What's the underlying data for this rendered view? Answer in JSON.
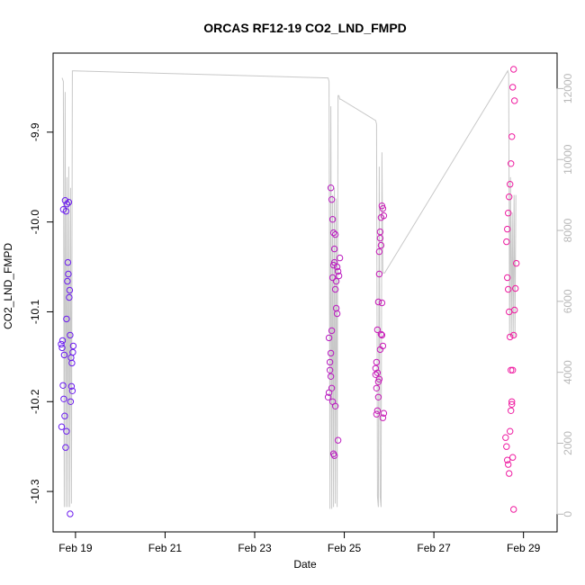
{
  "chart_data": {
    "type": "scatter",
    "title": "ORCAS RF12-19 CO2_LND_FMPD",
    "xlabel": "Date",
    "ylabel": "CO2_LND_FMPD",
    "y2label": "",
    "xlim": [
      0.5,
      11.75
    ],
    "ylim": [
      -10.345,
      -9.812
    ],
    "y2lim": [
      -500,
      13000
    ],
    "x_ticks": [
      {
        "value": 1,
        "label": "Feb 19"
      },
      {
        "value": 3,
        "label": "Feb 21"
      },
      {
        "value": 5,
        "label": "Feb 23"
      },
      {
        "value": 7,
        "label": "Feb 25"
      },
      {
        "value": 9,
        "label": "Feb 27"
      },
      {
        "value": 11,
        "label": "Feb 29"
      }
    ],
    "y_ticks": [
      {
        "value": -9.9,
        "label": "-9.9"
      },
      {
        "value": -10.0,
        "label": "-10.0"
      },
      {
        "value": -10.1,
        "label": "-10.1"
      },
      {
        "value": -10.2,
        "label": "-10.2"
      },
      {
        "value": -10.3,
        "label": "-10.3"
      }
    ],
    "y2_ticks": [
      {
        "value": 0,
        "label": "0"
      },
      {
        "value": 2000,
        "label": "2000"
      },
      {
        "value": 4000,
        "label": "4000"
      },
      {
        "value": 6000,
        "label": "6000"
      },
      {
        "value": 8000,
        "label": "8000"
      },
      {
        "value": 10000,
        "label": "10000"
      },
      {
        "value": 12000,
        "label": "12000"
      }
    ],
    "grid": false,
    "legend": "none",
    "colors": {
      "point_start": "#6a1cf0",
      "point_end": "#f01ca0",
      "altitude_line": "#c8c8c8",
      "axis": "#000000"
    },
    "altitude_series": {
      "name": "",
      "axis": "right",
      "x": [
        0.7,
        0.73,
        0.75,
        0.77,
        0.79,
        0.81,
        0.83,
        0.85,
        0.87,
        0.89,
        0.91,
        0.93,
        0.95,
        0.97,
        6.64,
        6.66,
        6.68,
        6.7,
        6.72,
        6.74,
        6.76,
        6.78,
        6.8,
        6.82,
        6.84,
        6.86,
        6.88,
        6.9,
        6.92,
        7.7,
        7.72,
        7.74,
        7.76,
        7.78,
        7.8,
        7.82,
        7.84,
        7.86,
        7.88,
        7.9,
        10.65,
        10.67,
        10.69,
        10.71,
        10.73,
        10.75,
        10.77,
        10.79,
        10.81,
        10.83
      ],
      "values": [
        12300,
        12200,
        200,
        11900,
        200,
        9500,
        200,
        9800,
        200,
        9200,
        300,
        12500,
        12500,
        12500,
        12300,
        12200,
        150,
        11500,
        150,
        9000,
        200,
        9200,
        300,
        8900,
        200,
        11800,
        11800,
        11700,
        11700,
        11100,
        11000,
        500,
        200,
        9800,
        500,
        200,
        10200,
        6800,
        6800,
        6800,
        12500,
        12400,
        5000,
        9500,
        5000,
        8500,
        5000,
        9000,
        5000,
        9000
      ]
    },
    "series": [
      {
        "name": "",
        "x": [
          0.68,
          0.7,
          0.72,
          0.74,
          0.76,
          0.78,
          0.8,
          0.82,
          0.84,
          0.86,
          0.88,
          0.9,
          0.92,
          0.94,
          0.95,
          0.85,
          0.81,
          0.77,
          0.73,
          0.79,
          0.83,
          0.87,
          0.91,
          0.93,
          0.75,
          0.71,
          0.69,
          0.89,
          0.8,
          0.88
        ],
        "values": [
          -10.136,
          -10.14,
          -10.182,
          -10.197,
          -10.216,
          -10.251,
          -10.108,
          -10.066,
          -10.058,
          -10.084,
          -10.126,
          -10.151,
          -10.157,
          -10.145,
          -10.138,
          -9.978,
          -9.98,
          -9.976,
          -9.986,
          -9.988,
          -10.045,
          -10.076,
          -10.183,
          -10.188,
          -10.148,
          -10.132,
          -10.228,
          -10.2,
          -10.233,
          -10.325
        ]
      },
      {
        "name": "",
        "x": [
          6.64,
          6.66,
          6.68,
          6.7,
          6.72,
          6.74,
          6.76,
          6.78,
          6.8,
          6.82,
          6.84,
          6.86,
          6.88,
          6.7,
          6.72,
          6.74,
          6.76,
          6.78,
          6.8,
          6.82,
          6.84,
          6.66,
          6.68,
          6.7,
          6.72,
          6.74,
          6.76,
          6.78,
          6.8,
          6.86,
          6.9
        ],
        "values": [
          -10.195,
          -10.19,
          -10.165,
          -10.146,
          -10.121,
          -10.062,
          -10.048,
          -10.03,
          -10.014,
          -10.066,
          -10.05,
          -10.055,
          -10.06,
          -9.962,
          -9.975,
          -9.997,
          -10.012,
          -10.045,
          -10.075,
          -10.096,
          -10.102,
          -10.129,
          -10.156,
          -10.172,
          -10.185,
          -10.2,
          -10.258,
          -10.26,
          -10.205,
          -10.243,
          -10.04
        ]
      },
      {
        "name": "",
        "x": [
          7.7,
          7.72,
          7.74,
          7.76,
          7.78,
          7.8,
          7.82,
          7.84,
          7.86,
          7.88,
          7.7,
          7.72,
          7.74,
          7.76,
          7.78,
          7.8,
          7.82,
          7.84,
          7.86,
          7.88,
          7.72,
          7.74,
          7.76,
          7.78,
          7.8,
          7.82,
          7.84,
          7.86
        ],
        "values": [
          -10.163,
          -10.156,
          -10.12,
          -10.089,
          -10.058,
          -10.018,
          -9.995,
          -9.982,
          -9.985,
          -9.993,
          -10.17,
          -10.185,
          -10.21,
          -10.195,
          -10.175,
          -10.142,
          -10.125,
          -10.126,
          -10.138,
          -10.213,
          -10.214,
          -10.168,
          -10.178,
          -10.033,
          -10.011,
          -10.026,
          -10.09,
          -10.218
        ]
      },
      {
        "name": "",
        "x": [
          10.6,
          10.62,
          10.64,
          10.66,
          10.68,
          10.7,
          10.72,
          10.74,
          10.76,
          10.78,
          10.8,
          10.82,
          10.84,
          10.62,
          10.64,
          10.66,
          10.68,
          10.7,
          10.72,
          10.74,
          10.76,
          10.78,
          10.8,
          10.64,
          10.66,
          10.68,
          10.7,
          10.72,
          10.74,
          10.76,
          10.78
        ],
        "values": [
          -10.24,
          -10.25,
          -10.265,
          -10.27,
          -10.28,
          -10.233,
          -10.21,
          -10.2,
          -10.165,
          -10.126,
          -10.098,
          -10.074,
          -10.046,
          -10.022,
          -10.008,
          -9.99,
          -9.972,
          -9.958,
          -9.935,
          -9.905,
          -9.85,
          -9.83,
          -9.865,
          -10.062,
          -10.075,
          -10.1,
          -10.128,
          -10.165,
          -10.203,
          -10.262,
          -10.32
        ]
      }
    ]
  }
}
